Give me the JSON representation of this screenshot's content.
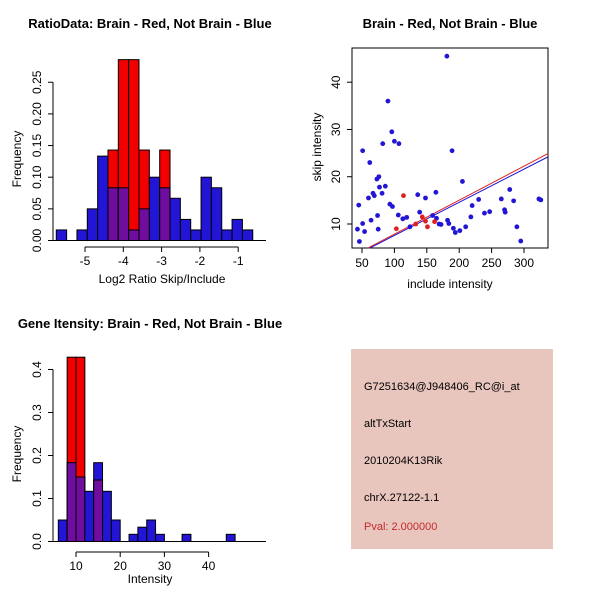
{
  "figure": {
    "background": "#FFFFFF",
    "kind": "R 2x2 plot grid"
  },
  "colors": {
    "blue": "#2215D5",
    "red": "#F20000",
    "point_red": "#E02020",
    "overlap_purple": "#6E0D9E",
    "axis": "#000000",
    "info_bg": "#E8C5BD",
    "pval_red": "#C42B2B"
  },
  "chart_data": [
    {
      "id": "ratio_histogram",
      "type": "bar",
      "title": "RatioData: Brain - Red, Not Brain - Blue",
      "xlabel": "Log2 Ratio Skip/Include",
      "ylabel": "Frequency",
      "bin_width": 0.27,
      "bin_left_edges": [
        -5.75,
        -5.48,
        -5.21,
        -4.94,
        -4.67,
        -4.4,
        -4.13,
        -3.86,
        -3.59,
        -3.32,
        -3.05,
        -2.78,
        -2.51,
        -2.24,
        -1.97,
        -1.7,
        -1.43,
        -1.16,
        -0.89
      ],
      "series": [
        {
          "name": "Not Brain (blue)",
          "color_key": "blue",
          "values": [
            0.0167,
            0,
            0.0167,
            0.05,
            0.1333,
            0.0833,
            0.0833,
            0.0167,
            0.05,
            0.1,
            0.0833,
            0.0667,
            0.0333,
            0.0167,
            0.1,
            0.0833,
            0.0167,
            0.0333,
            0.0167
          ]
        },
        {
          "name": "Brain (red)",
          "color_key": "red",
          "values": [
            0,
            0,
            0,
            0,
            0,
            0.1429,
            0.2857,
            0.2857,
            0.1429,
            0,
            0.1429,
            0,
            0,
            0,
            0,
            0,
            0,
            0,
            0
          ]
        }
      ],
      "xticks": [
        -5,
        -4,
        -3,
        -2,
        -1
      ],
      "xtick_labels": [
        "-5",
        "-4",
        "-3",
        "-2",
        "-1"
      ],
      "yticks": [
        0,
        0.05,
        0.1,
        0.15,
        0.2,
        0.25
      ],
      "ytick_labels": [
        "0.00",
        "0.05",
        "0.10",
        "0.15",
        "0.20",
        "0.25"
      ],
      "xlim": [
        -5.9,
        -0.6
      ],
      "ylim": [
        0,
        0.295
      ],
      "grid": false,
      "legend_position": "none"
    },
    {
      "id": "intensity_scatter",
      "type": "scatter",
      "title": "Brain - Red, Not Brain - Blue",
      "xlabel": "include intensity",
      "ylabel": "skip intensity",
      "xticks": [
        50,
        100,
        150,
        200,
        250,
        300
      ],
      "xtick_labels": [
        "50",
        "100",
        "150",
        "200",
        "250",
        "300"
      ],
      "yticks": [
        10,
        20,
        30,
        40
      ],
      "ytick_labels": [
        "10",
        "20",
        "30",
        "40"
      ],
      "xlim": [
        34,
        338
      ],
      "ylim": [
        4.5,
        47.5
      ],
      "series": [
        {
          "name": "Not Brain (blue)",
          "color_key": "blue",
          "points": [
            [
              181,
              45.5
            ],
            [
              90,
              36
            ],
            [
              96,
              29.5
            ],
            [
              100,
              27.5
            ],
            [
              107,
              27
            ],
            [
              82,
              27
            ],
            [
              51,
              25.5
            ],
            [
              62,
              23
            ],
            [
              189,
              25.5
            ],
            [
              205,
              19
            ],
            [
              76,
              20
            ],
            [
              73,
              19.5
            ],
            [
              77,
              17.8
            ],
            [
              86,
              18
            ],
            [
              67,
              16.5
            ],
            [
              60,
              15.5
            ],
            [
              69,
              16
            ],
            [
              81,
              16.5
            ],
            [
              93,
              14.2
            ],
            [
              97,
              13.7
            ],
            [
              45,
              14
            ],
            [
              136,
              16.2
            ],
            [
              148,
              15.5
            ],
            [
              164,
              16.7
            ],
            [
              139,
              12.5
            ],
            [
              106,
              11.9
            ],
            [
              113,
              11.1
            ],
            [
              159,
              11.8
            ],
            [
              165,
              11.2
            ],
            [
              169,
              10
            ],
            [
              172,
              9.9
            ],
            [
              124,
              9.4
            ],
            [
              119,
              11.4
            ],
            [
              51,
              10.1
            ],
            [
              43,
              8.9
            ],
            [
              54,
              8.4
            ],
            [
              64,
              10.8
            ],
            [
              74,
              11.8
            ],
            [
              75,
              8.9
            ],
            [
              46,
              6.3
            ],
            [
              182,
              10.8
            ],
            [
              184,
              10.1
            ],
            [
              191,
              9.1
            ],
            [
              194,
              8.2
            ],
            [
              201,
              8.6
            ],
            [
              210,
              9.4
            ],
            [
              218,
              11.5
            ],
            [
              220,
              13.9
            ],
            [
              230,
              15.2
            ],
            [
              239,
              12.3
            ],
            [
              247,
              12.6
            ],
            [
              265,
              15.3
            ],
            [
              270,
              13
            ],
            [
              271,
              12.5
            ],
            [
              278,
              17.3
            ],
            [
              284,
              14.9
            ],
            [
              289,
              9.4
            ],
            [
              295,
              6.4
            ],
            [
              323,
              15.3
            ],
            [
              326,
              15.1
            ]
          ]
        },
        {
          "name": "Brain (red)",
          "color_key": "point_red",
          "points": [
            [
              114,
              16
            ],
            [
              103,
              9
            ],
            [
              133,
              10
            ],
            [
              143,
              11.5
            ],
            [
              148,
              10.6
            ],
            [
              151,
              9.4
            ],
            [
              162,
              10.5
            ]
          ]
        }
      ],
      "fit_lines": [
        {
          "color_key": "point_red",
          "x1": 59,
          "y1": 4.9,
          "x2": 337,
          "y2": 24.9
        },
        {
          "color_key": "blue",
          "x1": 62,
          "y1": 4.9,
          "x2": 337,
          "y2": 24.2
        }
      ],
      "grid": false,
      "legend_position": "none"
    },
    {
      "id": "gene_intensity_histogram",
      "type": "bar",
      "title": "Gene Itensity: Brain - Red, Not Brain - Blue",
      "xlabel": "Intensity",
      "ylabel": "Frequency",
      "bin_width": 2,
      "bin_left_edges": [
        6,
        8,
        10,
        12,
        14,
        16,
        18,
        20,
        22,
        24,
        26,
        28,
        30,
        32,
        34,
        36,
        38,
        40,
        42,
        44
      ],
      "series": [
        {
          "name": "Not Brain (blue)",
          "color_key": "blue",
          "values": [
            0.05,
            0.1833,
            0.15,
            0.1167,
            0.1833,
            0.1167,
            0.05,
            0,
            0.0167,
            0.0333,
            0.05,
            0.0167,
            0,
            0,
            0.0167,
            0,
            0,
            0,
            0,
            0.0167
          ]
        },
        {
          "name": "Brain (red)",
          "color_key": "red",
          "values": [
            0,
            0.4286,
            0.4286,
            0,
            0.1429,
            0,
            0,
            0,
            0,
            0,
            0,
            0,
            0,
            0,
            0,
            0,
            0,
            0,
            0,
            0
          ]
        }
      ],
      "xticks": [
        10,
        20,
        30,
        40
      ],
      "xtick_labels": [
        "10",
        "20",
        "30",
        "40"
      ],
      "yticks": [
        0,
        0.1,
        0.2,
        0.3,
        0.4
      ],
      "ytick_labels": [
        "0.0",
        "0.1",
        "0.2",
        "0.3",
        "0.4"
      ],
      "xlim": [
        5,
        48.5
      ],
      "ylim": [
        0,
        0.44
      ],
      "grid": false,
      "legend_position": "none"
    },
    {
      "id": "gene_info",
      "type": "table",
      "rows": [
        "G7251634@J948406_RC@i_at",
        "altTxStart",
        "2010204K13Rik",
        "chrX.27122-1.1"
      ],
      "pval": "Pval: 2.000000"
    }
  ]
}
